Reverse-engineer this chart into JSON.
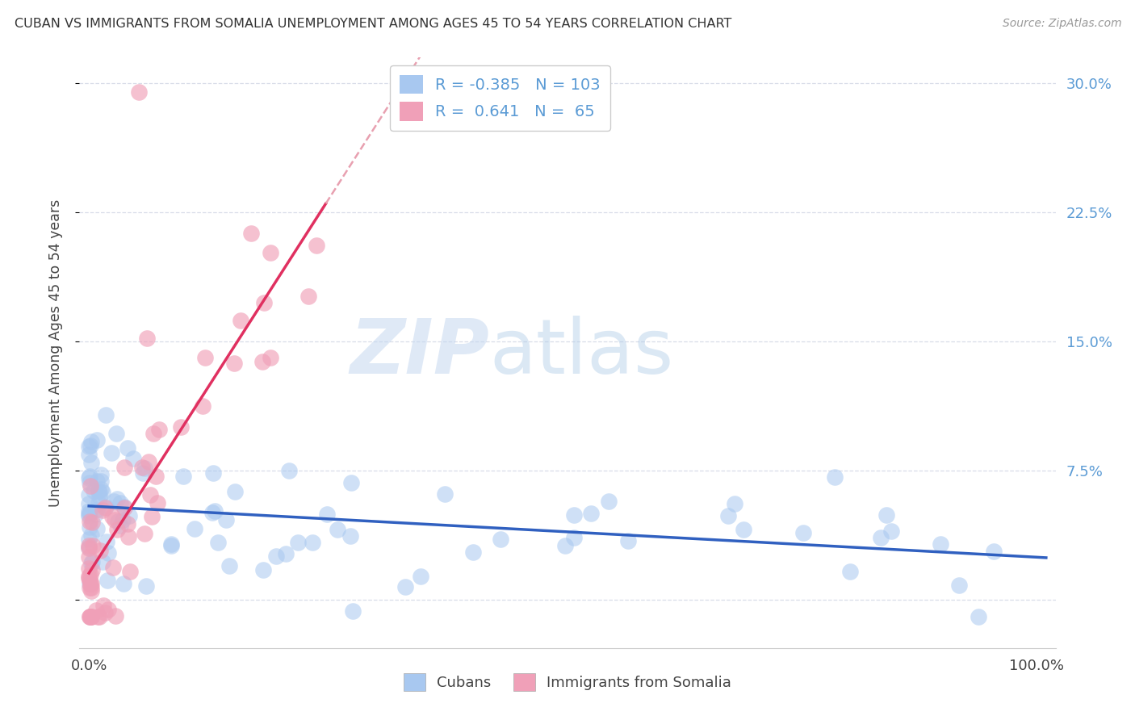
{
  "title": "CUBAN VS IMMIGRANTS FROM SOMALIA UNEMPLOYMENT AMONG AGES 45 TO 54 YEARS CORRELATION CHART",
  "source": "Source: ZipAtlas.com",
  "ylabel": "Unemployment Among Ages 45 to 54 years",
  "watermark_zip": "ZIP",
  "watermark_atlas": "atlas",
  "legend_cuban_R": "-0.385",
  "legend_cuban_N": "103",
  "legend_somalia_R": "0.641",
  "legend_somalia_N": "65",
  "cuban_color": "#a8c8f0",
  "somalia_color": "#f0a0b8",
  "cuban_trend_color": "#3060c0",
  "somalia_trend_color": "#e03060",
  "somalia_trend_dashed_color": "#e8a0b0",
  "ytick_vals": [
    0.0,
    0.075,
    0.15,
    0.225,
    0.3
  ],
  "ytick_labels": [
    "",
    "7.5%",
    "15.0%",
    "22.5%",
    "30.0%"
  ],
  "xlim": [
    -0.01,
    1.02
  ],
  "ylim": [
    -0.028,
    0.315
  ],
  "grid_color": "#d8dce8",
  "spine_color": "#cccccc"
}
